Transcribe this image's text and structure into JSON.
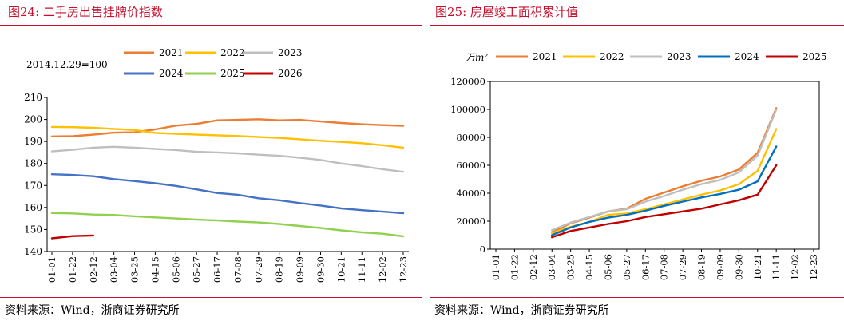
{
  "charts": [
    {
      "figure_title": "图24:   二手房出售挂牌价指数",
      "source": "资料来源：Wind，浙商证券研究所"
    },
    {
      "figure_title": "图25:   房屋竣工面积累计值",
      "source": "资料来源：Wind，浙商证券研究所"
    }
  ],
  "chart_data": [
    {
      "type": "line",
      "title": "图24:   二手房出售挂牌价指数",
      "annotation": "2014.12.29=100",
      "xlabel": "",
      "ylabel": "",
      "ylim": [
        140,
        210
      ],
      "yticks": [
        140,
        150,
        160,
        170,
        180,
        190,
        200,
        210
      ],
      "x_tick_labels": [
        "01-01",
        "01-22",
        "02-12",
        "03-04",
        "03-25",
        "04-15",
        "05-06",
        "05-27",
        "06-17",
        "07-08",
        "07-29",
        "08-19",
        "09-09",
        "09-30",
        "10-21",
        "11-11",
        "12-02",
        "12-23"
      ],
      "grid": false,
      "legend_position": "top",
      "series": [
        {
          "name": "2021",
          "color": "#ed7d31",
          "values": [
            192.3,
            192.4,
            193.1,
            194.0,
            194.2,
            195.5,
            197.2,
            198.0,
            199.6,
            199.8,
            200.1,
            199.6,
            199.8,
            199.1,
            198.4,
            197.8,
            197.4,
            197.1
          ]
        },
        {
          "name": "2022",
          "color": "#ffc000",
          "values": [
            196.6,
            196.5,
            196.2,
            195.7,
            195.2,
            193.9,
            193.5,
            193.1,
            192.8,
            192.5,
            192.0,
            191.6,
            191.0,
            190.3,
            189.8,
            189.2,
            188.3,
            187.2
          ]
        },
        {
          "name": "2023",
          "color": "#bfbfbf",
          "values": [
            185.5,
            186.2,
            187.2,
            187.6,
            187.2,
            186.6,
            186.1,
            185.3,
            185.0,
            184.6,
            184.0,
            183.5,
            182.6,
            181.6,
            180.0,
            178.8,
            177.4,
            176.2
          ]
        },
        {
          "name": "2024",
          "color": "#4472c4",
          "values": [
            175.1,
            174.8,
            174.2,
            172.9,
            172.0,
            171.0,
            169.8,
            168.2,
            166.6,
            165.8,
            164.2,
            163.3,
            162.0,
            160.9,
            159.6,
            158.8,
            158.1,
            157.4
          ]
        },
        {
          "name": "2025",
          "color": "#92d050",
          "values": [
            157.5,
            157.3,
            156.8,
            156.6,
            156.0,
            155.5,
            155.0,
            154.5,
            154.1,
            153.6,
            153.2,
            152.5,
            151.6,
            150.7,
            149.6,
            148.7,
            148.1,
            146.9
          ]
        },
        {
          "name": "2026",
          "color": "#c00000",
          "values": [
            146.0,
            147.0,
            147.3
          ]
        }
      ]
    },
    {
      "type": "line",
      "title": "图25:   房屋竣工面积累计值",
      "unit_label": "万m²",
      "xlabel": "",
      "ylabel": "",
      "ylim": [
        0,
        120000
      ],
      "yticks": [
        0,
        20000,
        40000,
        60000,
        80000,
        100000,
        120000
      ],
      "x_tick_labels": [
        "01-01",
        "01-22",
        "02-12",
        "03-04",
        "03-25",
        "04-15",
        "05-06",
        "05-27",
        "06-17",
        "07-08",
        "07-29",
        "08-19",
        "09-09",
        "09-30",
        "10-21",
        "11-11",
        "12-02",
        "12-23"
      ],
      "grid": false,
      "legend_position": "top",
      "series": [
        {
          "name": "2021",
          "color": "#ed7d31",
          "values": [
            null,
            null,
            null,
            12000,
            18500,
            22500,
            27000,
            29000,
            36000,
            40500,
            45000,
            49000,
            52000,
            57000,
            69000,
            101000
          ]
        },
        {
          "name": "2022",
          "color": "#ffc000",
          "values": [
            null,
            null,
            null,
            11500,
            16000,
            19500,
            24500,
            25500,
            28500,
            32000,
            35500,
            39000,
            42000,
            46500,
            56000,
            86000
          ]
        },
        {
          "name": "2023",
          "color": "#bfbfbf",
          "values": [
            null,
            null,
            null,
            13500,
            19000,
            23000,
            27000,
            28500,
            34000,
            38000,
            42500,
            46500,
            49500,
            55000,
            67000,
            100000
          ]
        },
        {
          "name": "2024",
          "color": "#0070c0",
          "values": [
            null,
            null,
            null,
            10000,
            15500,
            19500,
            22500,
            24500,
            27500,
            31000,
            34000,
            37000,
            39500,
            42500,
            48500,
            73500
          ]
        },
        {
          "name": "2025",
          "color": "#c00000",
          "values": [
            null,
            null,
            null,
            8500,
            13000,
            15500,
            18000,
            20000,
            23000,
            25000,
            27000,
            29000,
            32000,
            35000,
            39000,
            60000
          ]
        }
      ]
    }
  ]
}
